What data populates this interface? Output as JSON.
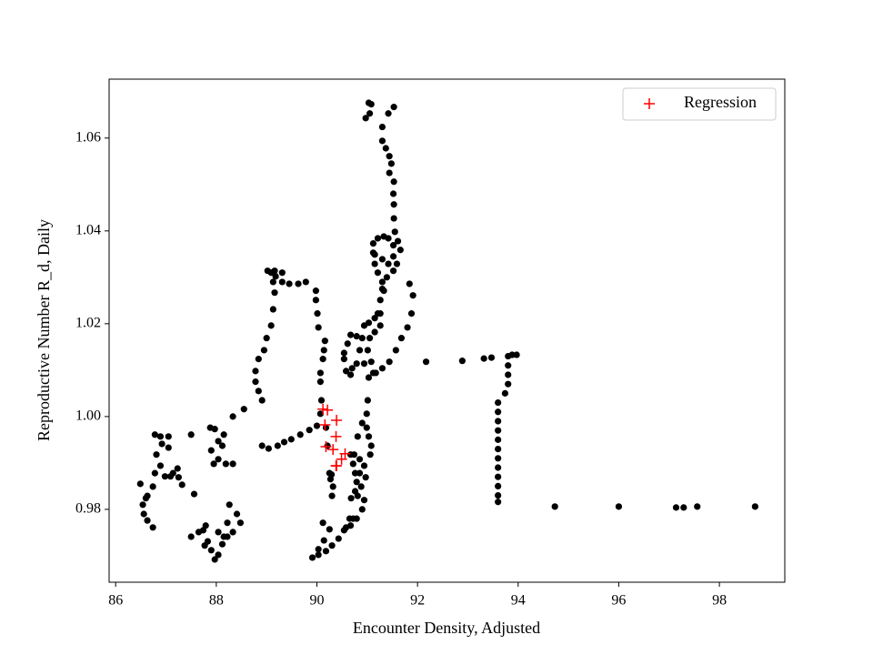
{
  "chart_data": {
    "type": "scatter",
    "xlabel": "Encounter Density, Adjusted",
    "ylabel": "Reproductive Number R_d, Daily",
    "xlim": [
      85.87,
      99.3
    ],
    "ylim": [
      0.9643,
      1.0727
    ],
    "xticks": [
      86,
      88,
      90,
      92,
      94,
      96,
      98
    ],
    "yticks": [
      0.98,
      {
        "value": 1,
        "label": "1.00"
      },
      1.02,
      1.04,
      1.06
    ],
    "legend": "upper right",
    "series": [
      {
        "color": "#000000",
        "marker": "o",
        "x": [
          91.03,
          91.08,
          90.97,
          91.05,
          91.53,
          91.42,
          91.3,
          91.3,
          91.37,
          91.44,
          91.48,
          91.44,
          91.53,
          91.52,
          91.53,
          91.53,
          91.55,
          91.61,
          91.52,
          91.42,
          91.33,
          91.21,
          91.12,
          91.12,
          91.15,
          91.3,
          91.42,
          91.52,
          91.39,
          91.3,
          91.33,
          91.26,
          91.21,
          91.26,
          91.15,
          91.05,
          91.01,
          91.08,
          91.17,
          91.3,
          91.44,
          91.57,
          91.68,
          91.8,
          91.88,
          91.91,
          91.84,
          91.59,
          91.52,
          91.66,
          91.3,
          91.21,
          91.15,
          94.73,
          96.0,
          97.14,
          97.29,
          97.56,
          98.71,
          93.6,
          93.6,
          93.6,
          93.6,
          93.6,
          93.6,
          93.6,
          93.6,
          93.6,
          93.6,
          93.6,
          93.6,
          93.74,
          93.8,
          93.8,
          93.8,
          93.8,
          93.88,
          93.97,
          92.17,
          92.89,
          93.32,
          93.47,
          91.01,
          90.9,
          90.81,
          90.74,
          90.85,
          90.88,
          90.94,
          90.79,
          90.67,
          90.54,
          90.43,
          90.3,
          90.18,
          90.03,
          89.91,
          90.12,
          90.25,
          90.14,
          90.03,
          90.29,
          90.32,
          90.3,
          90.58,
          90.65,
          90.72,
          90.07,
          90.09,
          90.07,
          90.18,
          90.21,
          90.25,
          90.27,
          90.07,
          90.12,
          90.14,
          90.16,
          90.03,
          90.01,
          89.98,
          89.98,
          89.78,
          89.63,
          89.45,
          89.31,
          89.18,
          89.09,
          89.02,
          89.16,
          89.31,
          89.13,
          89.16,
          89.13,
          89.09,
          89.0,
          88.95,
          88.84,
          88.78,
          88.78,
          88.84,
          88.91,
          88.55,
          88.33,
          88.15,
          88.12,
          88.04,
          87.95,
          87.9,
          88.04,
          87.97,
          87.88,
          88.19,
          88.33,
          88.26,
          88.41,
          88.48,
          88.33,
          88.22,
          88.12,
          88.04,
          87.97,
          87.9,
          87.83,
          87.74,
          87.79,
          87.65,
          87.5,
          87.77,
          88.04,
          88.22,
          88.15,
          86.78,
          86.89,
          86.92,
          86.81,
          87.05,
          87.05,
          86.89,
          86.78,
          86.74,
          86.63,
          86.54,
          86.56,
          86.63,
          86.74,
          86.6,
          86.49,
          87.14,
          87.23,
          87.25,
          87.09,
          86.98,
          87.5,
          87.56,
          87.32,
          88.91,
          89.04,
          89.22,
          89.35,
          89.49,
          89.67,
          89.85,
          90.0,
          90.67,
          90.72,
          90.76,
          90.79,
          90.85,
          90.94,
          90.97,
          91.06,
          91.08,
          91.03,
          90.99,
          90.99,
          91.03,
          91.12,
          90.94,
          90.79,
          90.7,
          90.67,
          90.58,
          90.54,
          90.54,
          90.61,
          90.67,
          90.79,
          90.85,
          90.9,
          90.94,
          91.03,
          91.15,
          91.26,
          90.76,
          90.81,
          90.68,
          90.9
        ],
        "y": [
          1.0676,
          1.0673,
          1.0643,
          1.0653,
          1.0667,
          1.0653,
          1.0624,
          1.0594,
          1.0578,
          1.0561,
          1.0545,
          1.0525,
          1.0506,
          1.048,
          1.0457,
          1.0427,
          1.0398,
          1.0378,
          1.0369,
          1.0384,
          1.0388,
          1.0384,
          1.0373,
          1.0353,
          1.0329,
          1.0339,
          1.0329,
          1.0314,
          1.03,
          1.029,
          1.0271,
          1.0251,
          1.0222,
          1.0196,
          1.0182,
          1.0169,
          1.0143,
          1.0118,
          1.0094,
          1.0104,
          1.0118,
          1.0143,
          1.0169,
          1.0192,
          1.0222,
          1.0261,
          1.0286,
          1.0329,
          1.0345,
          1.0359,
          1.0275,
          1.031,
          1.0349,
          0.9806,
          0.9806,
          0.9804,
          0.9804,
          0.9806,
          0.9806,
          0.9816,
          0.983,
          0.985,
          0.987,
          0.989,
          0.991,
          0.993,
          0.995,
          0.997,
          0.999,
          1.001,
          1.003,
          1.005,
          1.007,
          1.009,
          1.011,
          1.013,
          1.0133,
          1.0133,
          1.0118,
          1.012,
          1.0125,
          1.0127,
          1.0035,
          0.9986,
          0.9957,
          0.9918,
          0.9878,
          0.9849,
          0.982,
          0.978,
          0.9765,
          0.9755,
          0.9737,
          0.9722,
          0.971,
          0.9702,
          0.9696,
          0.9771,
          0.9757,
          0.9733,
          0.9714,
          0.9875,
          0.9849,
          0.9829,
          0.9761,
          0.978,
          0.978,
          1.0075,
          1.0035,
          1.0006,
          0.9976,
          0.9937,
          0.9878,
          0.9865,
          1.0094,
          1.0124,
          1.0143,
          1.0163,
          1.0192,
          1.0222,
          1.0251,
          1.0271,
          1.029,
          1.0286,
          1.0286,
          1.029,
          1.0302,
          1.031,
          1.0314,
          1.0314,
          1.031,
          1.029,
          1.0267,
          1.0231,
          1.0196,
          1.0169,
          1.0143,
          1.0124,
          1.0098,
          1.0075,
          1.0055,
          1.0035,
          1.0016,
          1.0,
          0.9961,
          0.9937,
          0.9908,
          0.9898,
          0.9927,
          0.9947,
          0.9973,
          0.9976,
          0.9898,
          0.9898,
          0.981,
          0.979,
          0.9771,
          0.9751,
          0.9741,
          0.9725,
          0.9702,
          0.9692,
          0.9712,
          0.9731,
          0.9755,
          0.9765,
          0.9751,
          0.9741,
          0.9722,
          0.9751,
          0.9771,
          0.9741,
          0.9961,
          0.9957,
          0.9941,
          0.9918,
          0.9957,
          0.9933,
          0.9894,
          0.9878,
          0.9849,
          0.9829,
          0.981,
          0.979,
          0.9776,
          0.9761,
          0.9824,
          0.9855,
          0.9878,
          0.9888,
          0.9869,
          0.9871,
          0.9871,
          0.9961,
          0.9833,
          0.9853,
          0.9937,
          0.9931,
          0.9937,
          0.9945,
          0.9951,
          0.9961,
          0.9971,
          0.998,
          0.9918,
          0.9898,
          0.9878,
          0.9859,
          0.9908,
          0.9894,
          0.9869,
          0.9918,
          0.9937,
          0.9957,
          0.9976,
          1.0006,
          1.0084,
          1.0094,
          1.0114,
          1.0114,
          1.0104,
          1.009,
          1.0098,
          1.0124,
          1.0137,
          1.0157,
          1.0176,
          1.0173,
          1.0143,
          1.0169,
          1.0196,
          1.0202,
          1.0212,
          1.0222,
          0.9839,
          0.9829,
          0.9824,
          0.98
        ]
      },
      {
        "name": "Regression",
        "color": "#ff0000",
        "marker": "+",
        "x": [
          90.12,
          90.21,
          90.39,
          90.16,
          90.38,
          90.18,
          90.32,
          90.56,
          90.49,
          90.39,
          90.38
        ],
        "y": [
          1.0016,
          1.0014,
          0.9992,
          0.9982,
          0.9957,
          0.9935,
          0.9929,
          0.992,
          0.9908,
          0.9894,
          0.9894
        ]
      }
    ]
  }
}
